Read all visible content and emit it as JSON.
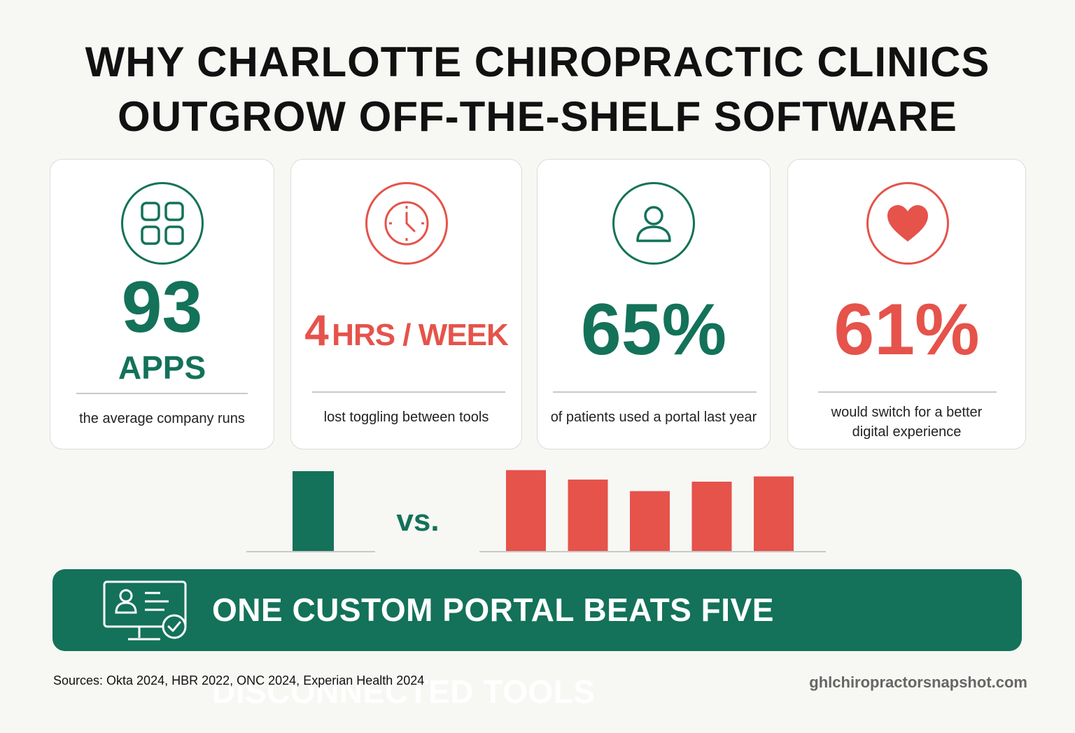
{
  "title": {
    "line1": "WHY CHARLOTTE CHIROPRACTIC CLINICS",
    "line2": "OUTGROW OFF-THE-SHELF SOFTWARE"
  },
  "cards": [
    {
      "icon": "apps-grid-icon",
      "value": "93",
      "unit": "APPS",
      "caption": "the average company runs",
      "color": "#137259"
    },
    {
      "icon": "clock-icon",
      "value": "4",
      "unit": "HRS / WEEK",
      "caption": "lost toggling between tools",
      "color": "#e5534b"
    },
    {
      "icon": "user-icon",
      "value": "65%",
      "caption": "of patients used a portal last year",
      "color": "#137259"
    },
    {
      "icon": "heart-icon",
      "value": "61%",
      "caption_line1": "would switch for a better",
      "caption_line2": "digital experience",
      "color": "#e5534b"
    }
  ],
  "chart_data": {
    "type": "bar",
    "vs_label": "vs.",
    "left_group": {
      "values": [
        0.76
      ],
      "color": "#137259"
    },
    "right_group": {
      "values": [
        0.77,
        0.68,
        0.57,
        0.66,
        0.71
      ],
      "color": "#e5534b"
    },
    "ylim": [
      0,
      1
    ]
  },
  "banner": {
    "icon": "computer-profile-check-icon",
    "text": "ONE CUSTOM PORTAL BEATS FIVE DISCONNECTED TOOLS"
  },
  "footer": {
    "sources": "Sources: Okta 2024, HBR 2022, ONC 2024, Experian Health 2024",
    "site": "ghlchiropractorsnapshot.com"
  }
}
